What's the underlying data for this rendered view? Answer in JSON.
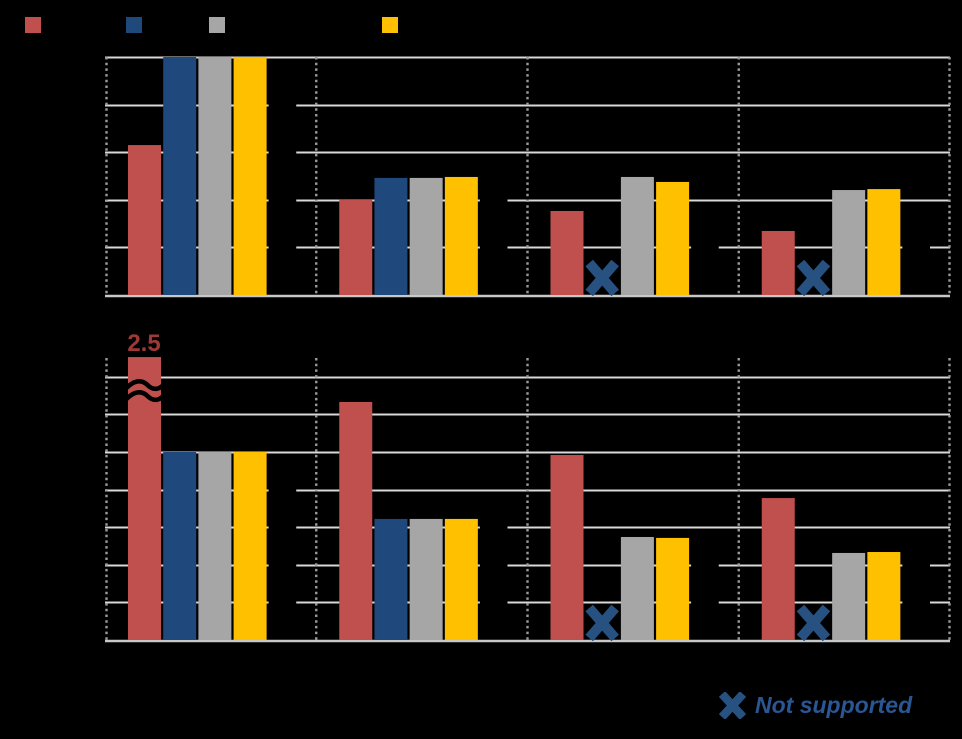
{
  "legend": {
    "swatches": [
      {
        "name": "red",
        "color": "#C0504D"
      },
      {
        "name": "navy",
        "color": "#1F497D"
      },
      {
        "name": "gray",
        "color": "#A6A6A6"
      },
      {
        "name": "gold",
        "color": "#FFC000"
      }
    ]
  },
  "not_supported": {
    "label": "Not supported",
    "text_color": "#2A5694",
    "x_mark_color": "#265180"
  },
  "annotations": {
    "truncated_value_label": "2.5",
    "truncated_label_color": "#9E3937",
    "break_symbol": "≈",
    "break_color": "#000000"
  },
  "style_colors": {
    "gridline": "#D9D9D9",
    "axis": "#C8C8C8",
    "dotted_separator": "#9A9A9A"
  },
  "chart_data": [
    {
      "id": "top",
      "type": "bar",
      "groups": 4,
      "gridline_interval": 0.2,
      "ylim": [
        0,
        1.0
      ],
      "grid": true,
      "tick_labels_visible": false,
      "series": [
        {
          "name": "red",
          "color": "#C0504D",
          "values": [
            0.63,
            0.4,
            0.353,
            0.269
          ]
        },
        {
          "name": "navy",
          "color": "#1F497D",
          "values": [
            1.0,
            0.492,
            null,
            null
          ]
        },
        {
          "name": "gray",
          "color": "#A6A6A6",
          "values": [
            1.0,
            0.492,
            0.496,
            0.441
          ]
        },
        {
          "name": "gold",
          "color": "#FFC000",
          "values": [
            1.0,
            0.496,
            0.475,
            0.445
          ]
        }
      ],
      "not_supported_marks": {
        "series": "navy",
        "groups": [
          2,
          3
        ]
      }
    },
    {
      "id": "bottom",
      "type": "bar",
      "groups": 4,
      "gridline_interval": 0.2,
      "ylim": [
        0,
        1.4
      ],
      "grid": true,
      "tick_labels_visible": false,
      "series": [
        {
          "name": "red",
          "color": "#C0504D",
          "values": [
            2.5,
            1.266,
            0.984,
            0.755
          ]
        },
        {
          "name": "navy",
          "color": "#1F497D",
          "values": [
            1.0,
            0.644,
            null,
            null
          ]
        },
        {
          "name": "gray",
          "color": "#A6A6A6",
          "values": [
            1.0,
            0.644,
            0.548,
            0.463
          ]
        },
        {
          "name": "gold",
          "color": "#FFC000",
          "values": [
            1.0,
            0.644,
            0.543,
            0.468
          ]
        }
      ],
      "truncated_bar": {
        "series": "red",
        "group": 0,
        "value_label": "2.5",
        "drawn_value": 1.505,
        "break_symbol": true
      },
      "not_supported_marks": {
        "series": "navy",
        "groups": [
          2,
          3
        ]
      }
    }
  ]
}
